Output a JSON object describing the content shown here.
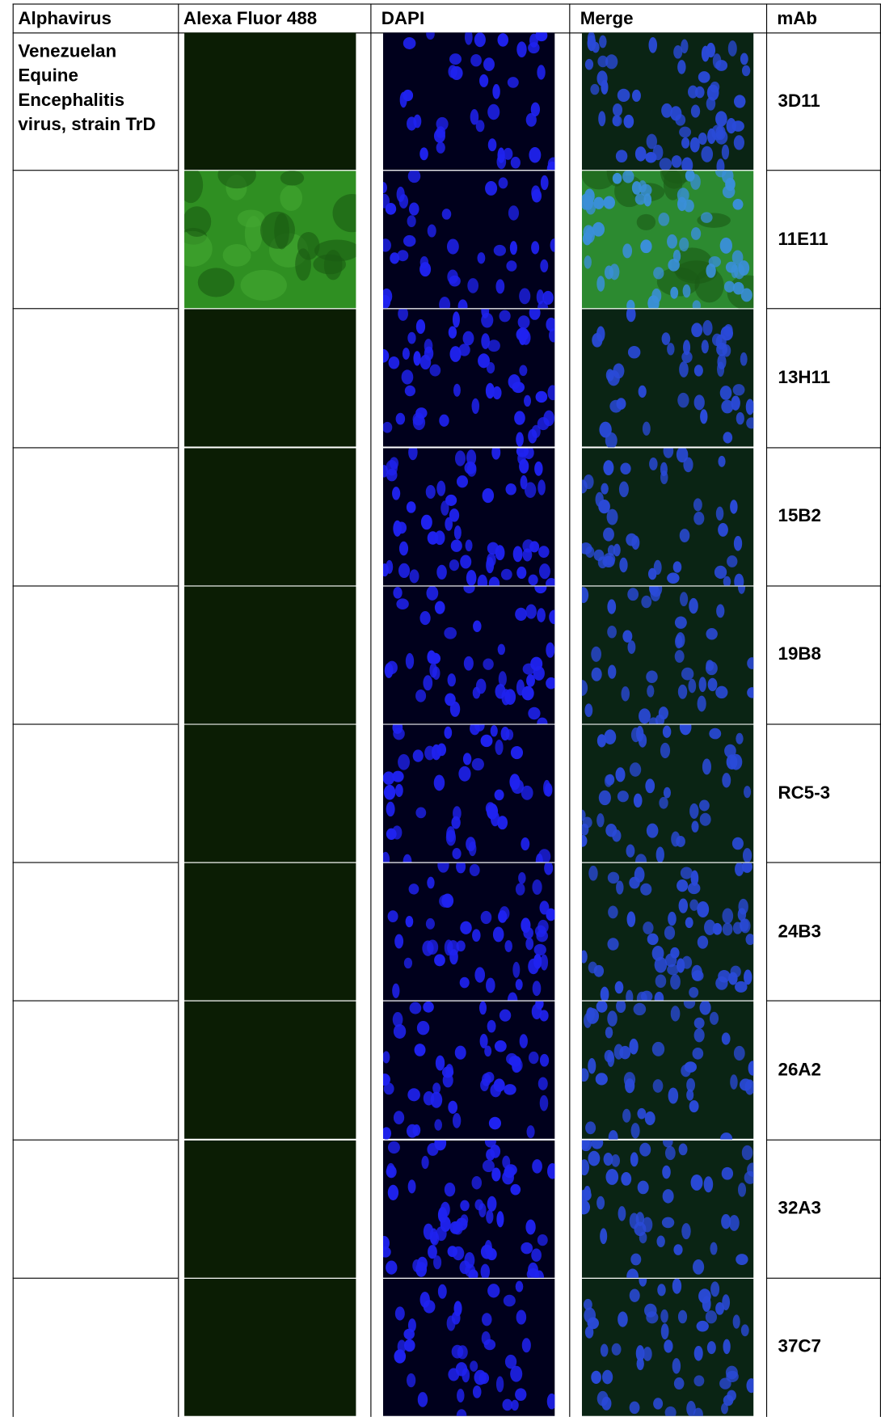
{
  "header": [
    "Alphavirus",
    "Alexa Fluor 488",
    "DAPI",
    "Merge",
    "mAb"
  ],
  "rows": [
    {
      "alphavirus": "Venezuelan Equine Encephalitis virus, strain TrD",
      "mab": "3D11"
    },
    {
      "mab": "11E11"
    },
    {
      "mab": "13H11"
    },
    {
      "mab": "15B2"
    },
    {
      "mab": "19B8"
    },
    {
      "mab": "RC5-3"
    },
    {
      "mab": "24B3"
    },
    {
      "mab": "26A2"
    },
    {
      "mab": "32A3"
    },
    {
      "mab": "37C7"
    }
  ]
}
